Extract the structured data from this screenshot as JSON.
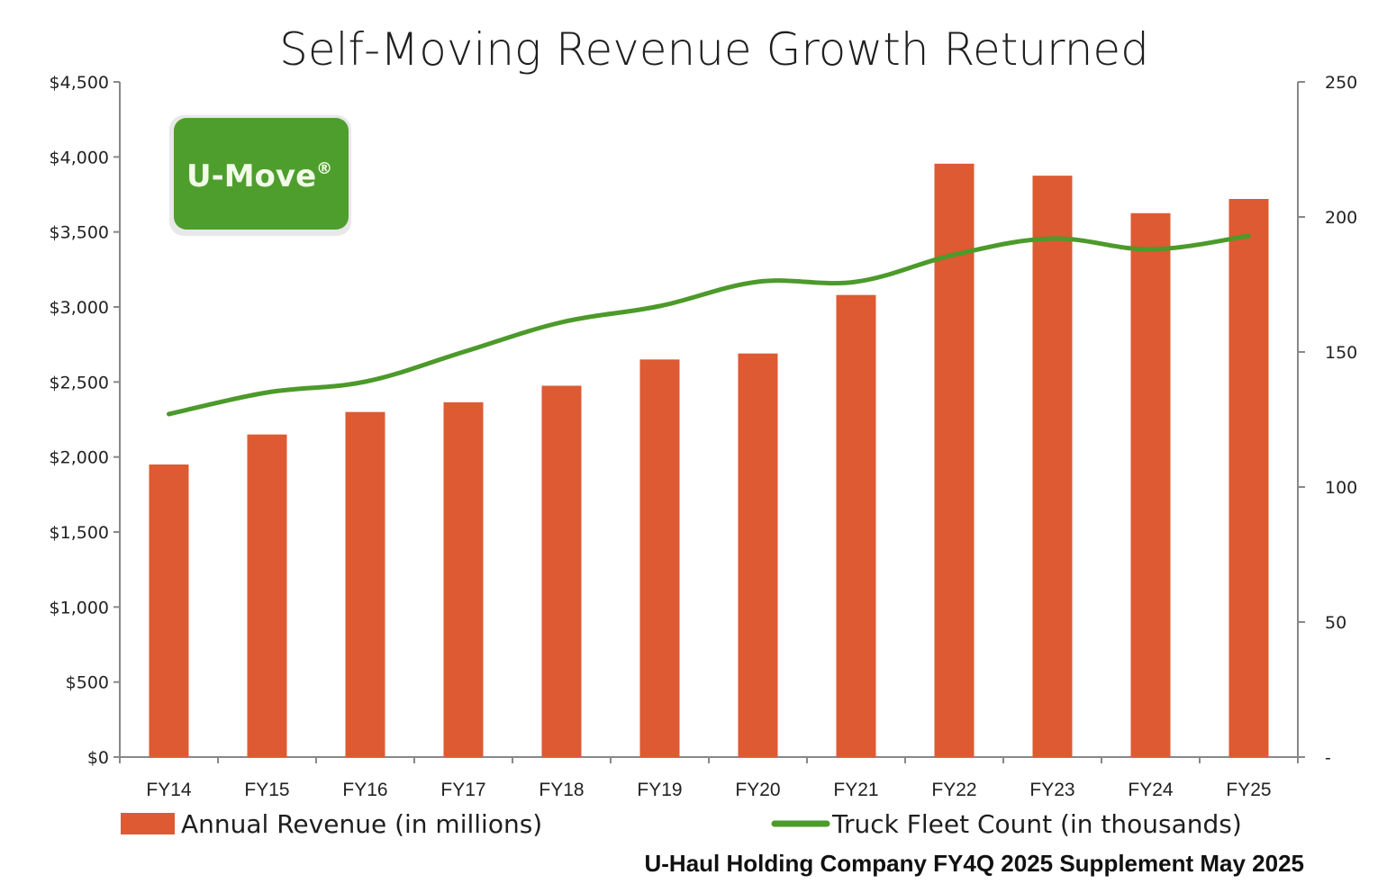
{
  "colors": {
    "bar": "#DD5A32",
    "line": "#4C9A2A",
    "logo_bg": "#4E9E2E",
    "axis": "#888888"
  },
  "logo": {
    "text": "U-Move",
    "mark": "®"
  },
  "source_note": "U-Haul Holding Company FY4Q 2025 Supplement May 2025",
  "chart_data": {
    "type": "bar",
    "title": "Self-Moving Revenue Growth Returned",
    "xlabel": "",
    "ylabel": "",
    "categories": [
      "FY14",
      "FY15",
      "FY16",
      "FY17",
      "FY18",
      "FY19",
      "FY20",
      "FY21",
      "FY22",
      "FY23",
      "FY24",
      "FY25"
    ],
    "series": [
      {
        "name": "Annual Revenue (in millions)",
        "type": "bar",
        "axis": "left",
        "values": [
          1950,
          2150,
          2300,
          2365,
          2475,
          2650,
          2690,
          3080,
          3955,
          3875,
          3625,
          3720
        ]
      },
      {
        "name": "Truck Fleet Count (in thousands)",
        "type": "line",
        "axis": "right",
        "values": [
          127,
          135,
          139,
          150,
          161,
          167,
          176,
          176,
          186,
          192,
          188,
          193
        ]
      }
    ],
    "ylim": [
      0,
      4500
    ],
    "y2lim": [
      0,
      250
    ],
    "yticks": [
      "$0",
      "$500",
      "$1,000",
      "$1,500",
      "$2,000",
      "$2,500",
      "$3,000",
      "$3,500",
      "$4,000",
      "$4,500"
    ],
    "ytick_values": [
      0,
      500,
      1000,
      1500,
      2000,
      2500,
      3000,
      3500,
      4000,
      4500
    ],
    "y2ticks": [
      "-",
      "50",
      "100",
      "150",
      "200",
      "250"
    ],
    "y2tick_values": [
      0,
      50,
      100,
      150,
      200,
      250
    ],
    "grid": false,
    "legend": "bottom"
  }
}
